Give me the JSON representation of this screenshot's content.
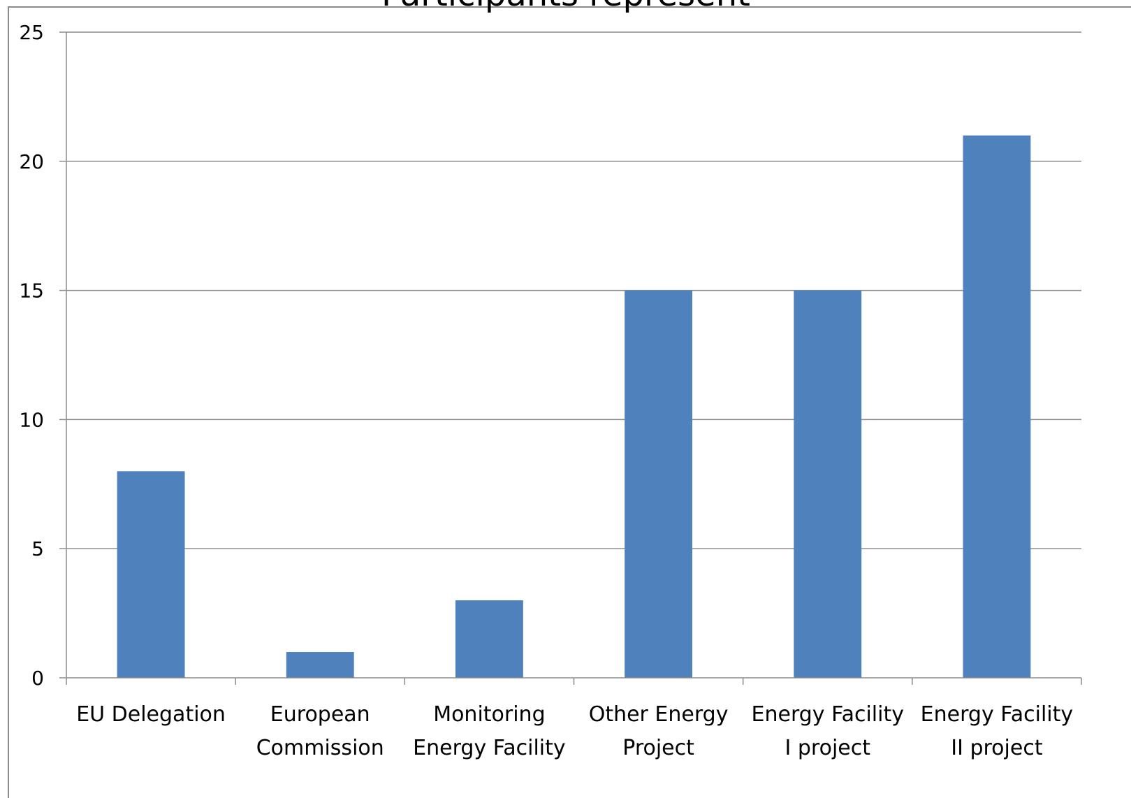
{
  "chart_data": {
    "type": "bar",
    "title": "Participants represent",
    "xlabel": "",
    "ylabel": "",
    "categories": [
      [
        "EU Delegation"
      ],
      [
        "European",
        "Commission"
      ],
      [
        "Monitoring",
        "Energy Facility"
      ],
      [
        "Other Energy",
        "Project"
      ],
      [
        "Energy Facility",
        "I project"
      ],
      [
        "Energy Facility",
        "II project"
      ]
    ],
    "series": [
      {
        "values": [
          8,
          1,
          3,
          15,
          15,
          21
        ],
        "color": "#4F81BD"
      }
    ],
    "ylim": [
      0,
      25
    ],
    "yticks": [
      0,
      5,
      10,
      15,
      20,
      25
    ],
    "grid": true,
    "legend": "none"
  },
  "colors": {
    "bar": "#4F81BD",
    "grid": "#8c8c8c",
    "axis": "#8c8c8c",
    "frame": "#8c8c8c"
  }
}
